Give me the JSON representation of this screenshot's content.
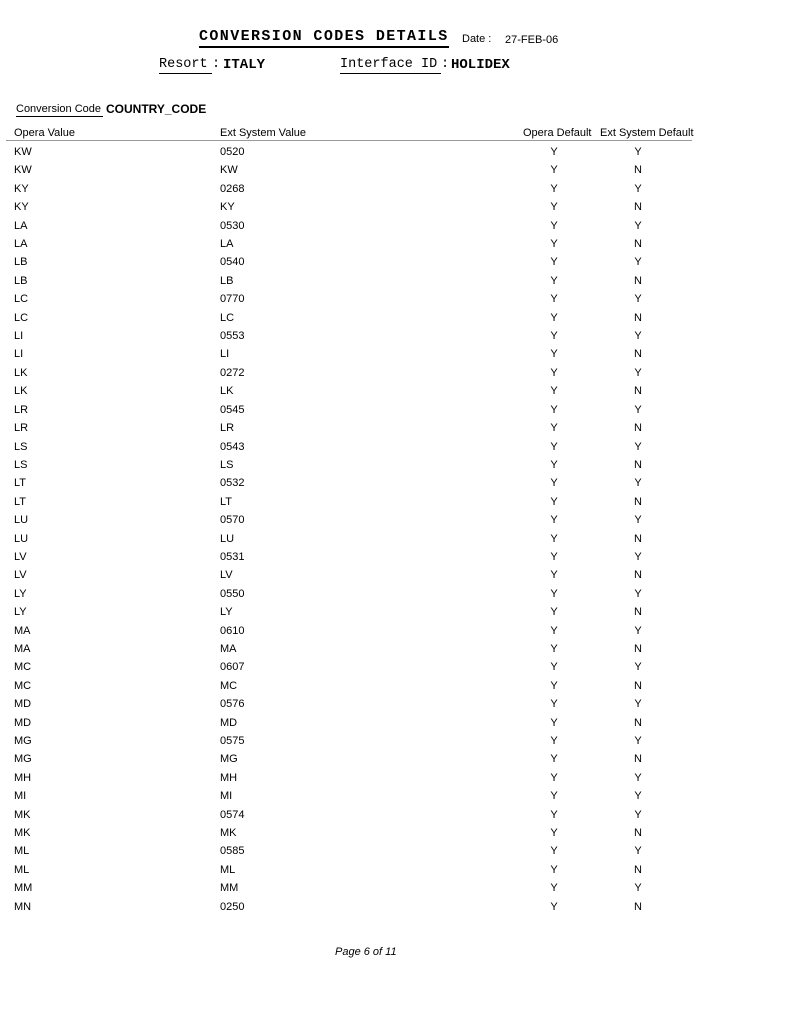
{
  "header": {
    "title": "CONVERSION CODES DETAILS",
    "date_label": "Date :",
    "date_value": "27-FEB-06",
    "resort_label": "Resort",
    "resort_sep": ":",
    "resort_value": "ITALY",
    "interface_label": "Interface ID",
    "interface_sep": ":",
    "interface_value": "HOLIDEX"
  },
  "section": {
    "conversion_code_label": "Conversion Code",
    "conversion_code_value": "COUNTRY_CODE"
  },
  "table": {
    "columns": [
      "Opera Value",
      "Ext System Value",
      "Opera Default",
      "Ext System Default"
    ],
    "rows": [
      [
        "KW",
        "0520",
        "Y",
        "Y"
      ],
      [
        "KW",
        "KW",
        "Y",
        "N"
      ],
      [
        "KY",
        "0268",
        "Y",
        "Y"
      ],
      [
        "KY",
        "KY",
        "Y",
        "N"
      ],
      [
        "LA",
        "0530",
        "Y",
        "Y"
      ],
      [
        "LA",
        "LA",
        "Y",
        "N"
      ],
      [
        "LB",
        "0540",
        "Y",
        "Y"
      ],
      [
        "LB",
        "LB",
        "Y",
        "N"
      ],
      [
        "LC",
        "0770",
        "Y",
        "Y"
      ],
      [
        "LC",
        "LC",
        "Y",
        "N"
      ],
      [
        "LI",
        "0553",
        "Y",
        "Y"
      ],
      [
        "LI",
        "LI",
        "Y",
        "N"
      ],
      [
        "LK",
        "0272",
        "Y",
        "Y"
      ],
      [
        "LK",
        "LK",
        "Y",
        "N"
      ],
      [
        "LR",
        "0545",
        "Y",
        "Y"
      ],
      [
        "LR",
        "LR",
        "Y",
        "N"
      ],
      [
        "LS",
        "0543",
        "Y",
        "Y"
      ],
      [
        "LS",
        "LS",
        "Y",
        "N"
      ],
      [
        "LT",
        "0532",
        "Y",
        "Y"
      ],
      [
        "LT",
        "LT",
        "Y",
        "N"
      ],
      [
        "LU",
        "0570",
        "Y",
        "Y"
      ],
      [
        "LU",
        "LU",
        "Y",
        "N"
      ],
      [
        "LV",
        "0531",
        "Y",
        "Y"
      ],
      [
        "LV",
        "LV",
        "Y",
        "N"
      ],
      [
        "LY",
        "0550",
        "Y",
        "Y"
      ],
      [
        "LY",
        "LY",
        "Y",
        "N"
      ],
      [
        "MA",
        "0610",
        "Y",
        "Y"
      ],
      [
        "MA",
        "MA",
        "Y",
        "N"
      ],
      [
        "MC",
        "0607",
        "Y",
        "Y"
      ],
      [
        "MC",
        "MC",
        "Y",
        "N"
      ],
      [
        "MD",
        "0576",
        "Y",
        "Y"
      ],
      [
        "MD",
        "MD",
        "Y",
        "N"
      ],
      [
        "MG",
        "0575",
        "Y",
        "Y"
      ],
      [
        "MG",
        "MG",
        "Y",
        "N"
      ],
      [
        "MH",
        "MH",
        "Y",
        "Y"
      ],
      [
        "MI",
        "MI",
        "Y",
        "Y"
      ],
      [
        "MK",
        "0574",
        "Y",
        "Y"
      ],
      [
        "MK",
        "MK",
        "Y",
        "N"
      ],
      [
        "ML",
        "0585",
        "Y",
        "Y"
      ],
      [
        "ML",
        "ML",
        "Y",
        "N"
      ],
      [
        "MM",
        "MM",
        "Y",
        "Y"
      ],
      [
        "MN",
        "0250",
        "Y",
        "N"
      ]
    ]
  },
  "footer": {
    "page_label": "Page 6 of 11"
  }
}
